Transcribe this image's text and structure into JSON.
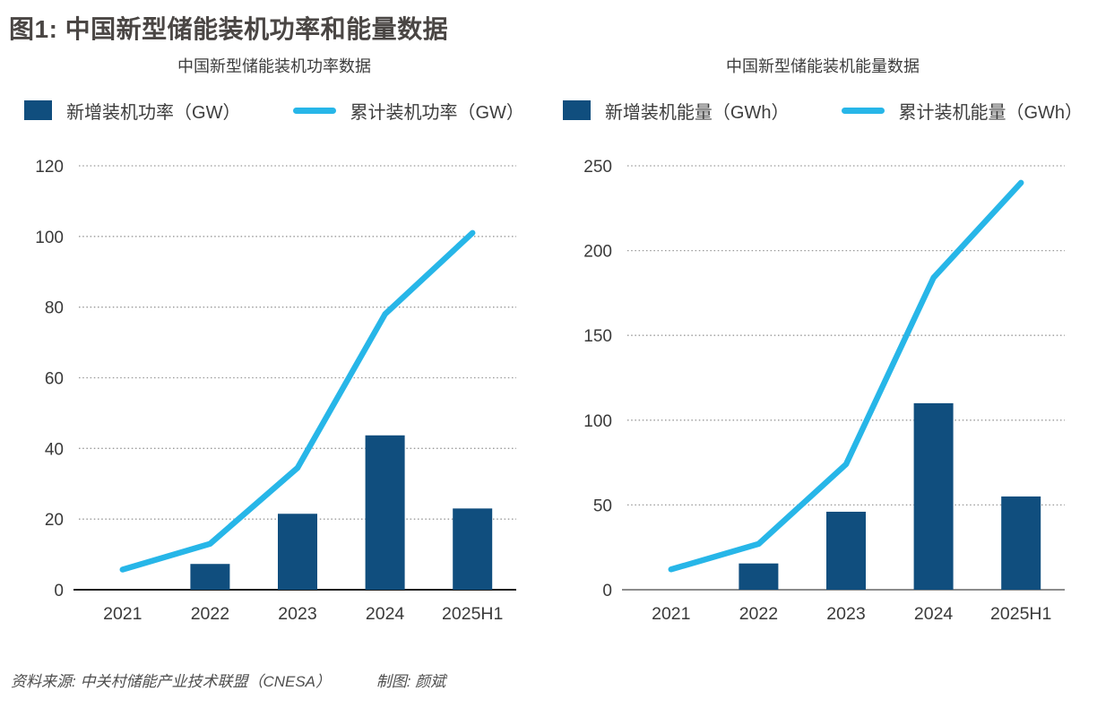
{
  "page_title": "图1: 中国新型储能装机功率和能量数据",
  "colors": {
    "bar": "#104e7e",
    "line": "#27b6e8",
    "grid": "#999999",
    "axis_text": "#3a3a3a"
  },
  "chart_data": [
    {
      "type": "bar",
      "combo": "bar+line",
      "title": "中国新型储能装机功率数据",
      "categories": [
        "2021",
        "2022",
        "2023",
        "2024",
        "2025H1"
      ],
      "series": [
        {
          "name": "新增装机功率（GW）",
          "kind": "bar",
          "values": [
            null,
            7.3,
            21.5,
            43.7,
            23
          ]
        },
        {
          "name": "累计装机功率（GW）",
          "kind": "line",
          "values": [
            5.7,
            13,
            34.5,
            78,
            101
          ]
        }
      ],
      "ylim": [
        0,
        120
      ],
      "ytick_step": 20,
      "grid": "horizontal dotted",
      "legend_position": "top",
      "axis_color": "#1f1f1f"
    },
    {
      "type": "bar",
      "combo": "bar+line",
      "title": "中国新型储能装机能量数据",
      "categories": [
        "2021",
        "2022",
        "2023",
        "2024",
        "2025H1"
      ],
      "series": [
        {
          "name": "新增装机能量（GWh）",
          "kind": "bar",
          "values": [
            null,
            15.5,
            46,
            110,
            55
          ]
        },
        {
          "name": "累计装机能量（GWh）",
          "kind": "line",
          "values": [
            12,
            27,
            74,
            184,
            240
          ]
        }
      ],
      "ylim": [
        0,
        250
      ],
      "ytick_step": 50,
      "grid": "horizontal dotted",
      "legend_position": "top",
      "axis_color": "#8c8c8c"
    }
  ],
  "footer": {
    "source": "资料来源: 中关村储能产业技术联盟（CNESA）",
    "credit": "制图: 颜斌"
  }
}
